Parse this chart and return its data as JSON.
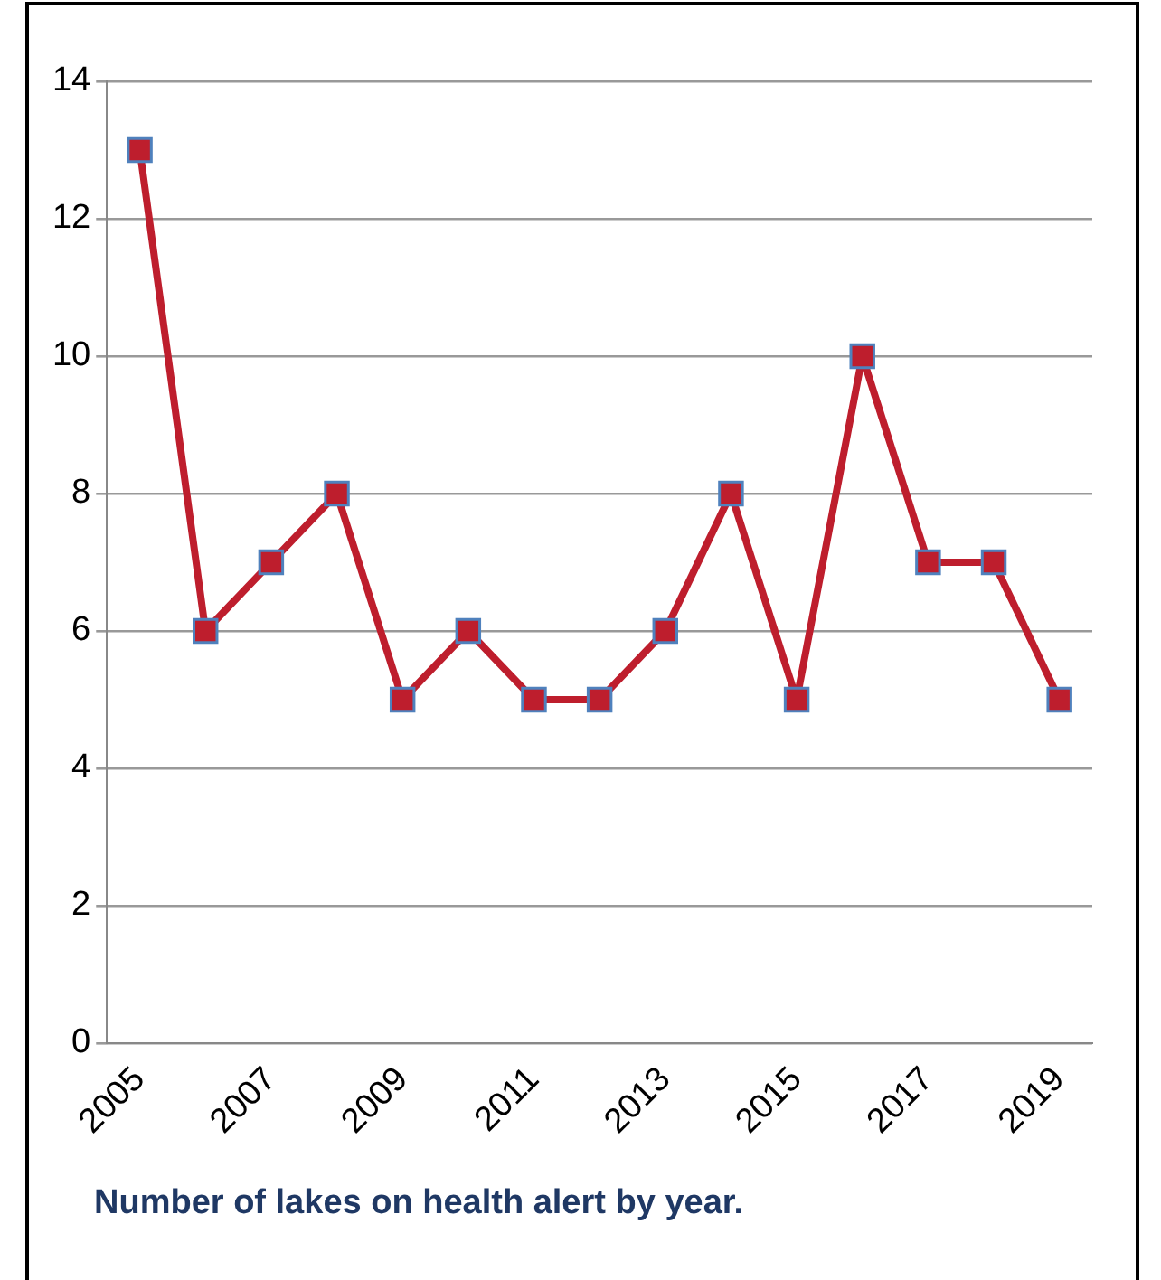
{
  "chart_data": {
    "type": "line",
    "title": "Number of lakes on health alert by year.",
    "categories": [
      "2005",
      null,
      "2007",
      null,
      "2009",
      null,
      "2011",
      null,
      "2013",
      null,
      "2015",
      null,
      "2017",
      null,
      "2019"
    ],
    "series": [
      {
        "color": "#be1e2d",
        "values": [
          13,
          6,
          7,
          8,
          5,
          6,
          5,
          5,
          6,
          8,
          5,
          10,
          7,
          7,
          5
        ]
      }
    ],
    "ylim": [
      0,
      14
    ],
    "yticks": [
      0,
      2,
      4,
      6,
      8,
      10,
      12,
      14
    ],
    "grid": "y",
    "legend": false,
    "marker": "square",
    "line_style": "solid"
  }
}
